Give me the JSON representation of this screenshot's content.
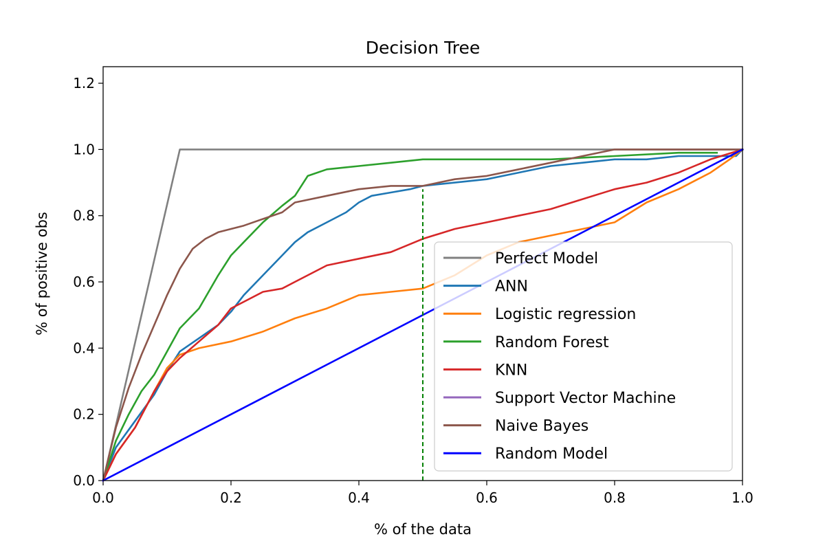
{
  "chart_data": {
    "type": "line",
    "title": "Decision Tree",
    "xlabel": "% of the data",
    "ylabel": "% of positive obs",
    "xlim": [
      0,
      1
    ],
    "ylim": [
      0,
      1.25
    ],
    "xticks": [
      "0.0",
      "0.2",
      "0.4",
      "0.6",
      "0.8",
      "1.0"
    ],
    "yticks": [
      "0.0",
      "0.2",
      "0.4",
      "0.6",
      "0.8",
      "1.0",
      "1.2"
    ],
    "grid": false,
    "legend_position": "center-right",
    "reference_line": {
      "x": 0.5,
      "style": "dashed",
      "color": "#008000"
    },
    "series": [
      {
        "name": "Perfect Model",
        "color": "#808080",
        "x": [
          0,
          0.12,
          1.0
        ],
        "y": [
          0,
          1.0,
          1.0
        ]
      },
      {
        "name": "ANN",
        "color": "#1f77b4",
        "x": [
          0,
          0.02,
          0.05,
          0.08,
          0.1,
          0.12,
          0.15,
          0.18,
          0.2,
          0.22,
          0.25,
          0.28,
          0.3,
          0.32,
          0.35,
          0.38,
          0.4,
          0.42,
          0.45,
          0.48,
          0.5,
          0.55,
          0.6,
          0.65,
          0.7,
          0.75,
          0.8,
          0.85,
          0.9,
          0.95,
          0.99,
          1.0
        ],
        "y": [
          0,
          0.1,
          0.18,
          0.26,
          0.33,
          0.39,
          0.43,
          0.47,
          0.51,
          0.56,
          0.62,
          0.68,
          0.72,
          0.75,
          0.78,
          0.81,
          0.84,
          0.86,
          0.87,
          0.88,
          0.89,
          0.9,
          0.91,
          0.93,
          0.95,
          0.96,
          0.97,
          0.97,
          0.98,
          0.98,
          0.98,
          1.0
        ]
      },
      {
        "name": "Logistic regression",
        "color": "#ff7f0e",
        "x": [
          0,
          0.02,
          0.05,
          0.08,
          0.1,
          0.12,
          0.15,
          0.2,
          0.25,
          0.3,
          0.35,
          0.4,
          0.45,
          0.5,
          0.55,
          0.6,
          0.65,
          0.7,
          0.75,
          0.8,
          0.85,
          0.9,
          0.95,
          0.98,
          1.0
        ],
        "y": [
          0,
          0.08,
          0.16,
          0.27,
          0.34,
          0.38,
          0.4,
          0.42,
          0.45,
          0.49,
          0.52,
          0.56,
          0.57,
          0.58,
          0.62,
          0.68,
          0.72,
          0.74,
          0.76,
          0.78,
          0.84,
          0.88,
          0.93,
          0.97,
          1.0
        ]
      },
      {
        "name": "Random Forest",
        "color": "#2ca02c",
        "x": [
          0,
          0.02,
          0.04,
          0.06,
          0.08,
          0.1,
          0.12,
          0.15,
          0.18,
          0.2,
          0.22,
          0.25,
          0.28,
          0.3,
          0.32,
          0.35,
          0.4,
          0.45,
          0.5,
          0.6,
          0.7,
          0.8,
          0.9,
          0.96
        ],
        "y": [
          0,
          0.12,
          0.2,
          0.27,
          0.32,
          0.39,
          0.46,
          0.52,
          0.62,
          0.68,
          0.72,
          0.78,
          0.83,
          0.86,
          0.92,
          0.94,
          0.95,
          0.96,
          0.97,
          0.97,
          0.97,
          0.98,
          0.99,
          0.99
        ]
      },
      {
        "name": "KNN",
        "color": "#d62728",
        "x": [
          0,
          0.02,
          0.05,
          0.08,
          0.1,
          0.12,
          0.15,
          0.18,
          0.2,
          0.25,
          0.28,
          0.3,
          0.35,
          0.4,
          0.45,
          0.5,
          0.55,
          0.6,
          0.65,
          0.7,
          0.75,
          0.8,
          0.85,
          0.9,
          0.95,
          1.0
        ],
        "y": [
          0,
          0.08,
          0.16,
          0.27,
          0.33,
          0.37,
          0.42,
          0.47,
          0.52,
          0.57,
          0.58,
          0.6,
          0.65,
          0.67,
          0.69,
          0.73,
          0.76,
          0.78,
          0.8,
          0.82,
          0.85,
          0.88,
          0.9,
          0.93,
          0.97,
          1.0
        ]
      },
      {
        "name": "Support Vector Machine",
        "color": "#9467bd",
        "x": [],
        "y": []
      },
      {
        "name": "Naive Bayes",
        "color": "#8c564b",
        "x": [
          0,
          0.02,
          0.04,
          0.06,
          0.08,
          0.1,
          0.12,
          0.14,
          0.16,
          0.18,
          0.2,
          0.22,
          0.25,
          0.28,
          0.3,
          0.35,
          0.4,
          0.45,
          0.5,
          0.55,
          0.6,
          0.65,
          0.7,
          0.75,
          0.8,
          0.9,
          1.0
        ],
        "y": [
          0,
          0.16,
          0.28,
          0.38,
          0.47,
          0.56,
          0.64,
          0.7,
          0.73,
          0.75,
          0.76,
          0.77,
          0.79,
          0.81,
          0.84,
          0.86,
          0.88,
          0.89,
          0.89,
          0.91,
          0.92,
          0.94,
          0.96,
          0.98,
          1.0,
          1.0,
          1.0
        ]
      },
      {
        "name": "Random Model",
        "color": "#0000ff",
        "x": [
          0,
          1.0
        ],
        "y": [
          0,
          1.0
        ]
      }
    ]
  }
}
